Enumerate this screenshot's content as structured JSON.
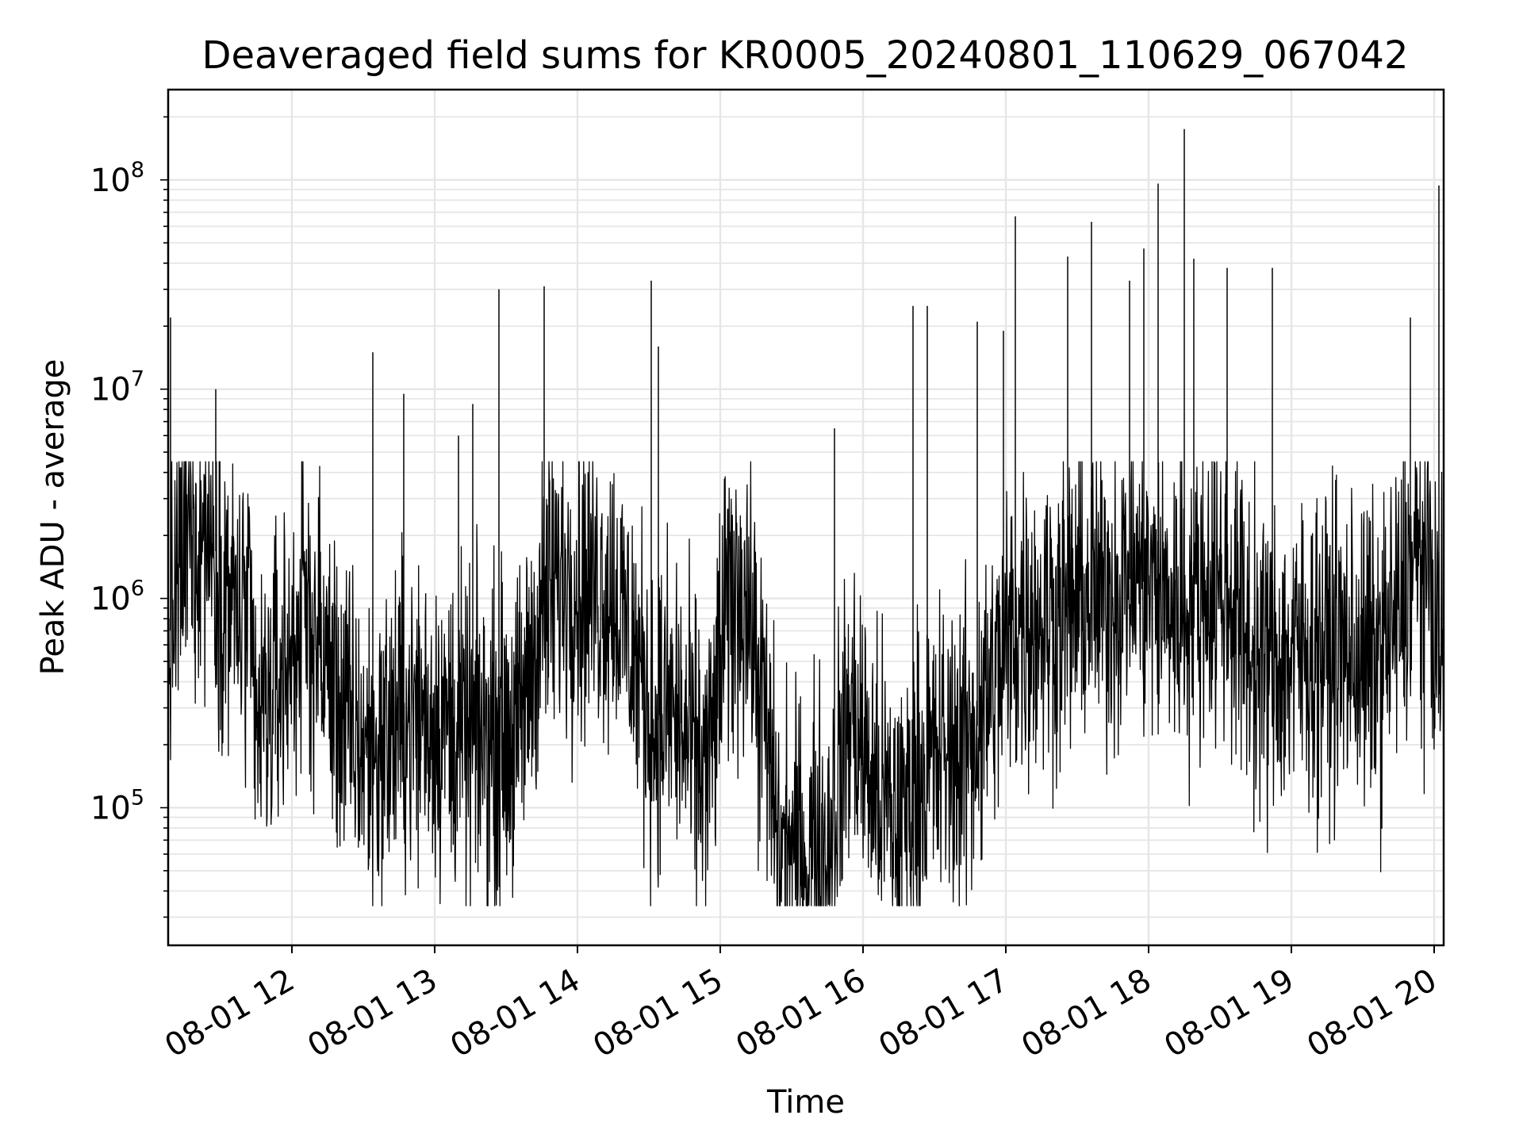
{
  "chart_data": {
    "type": "line",
    "title": "Deaveraged field sums for KR0005_20240801_110629_067042",
    "xlabel": "Time",
    "ylabel": "Peak ADU - average",
    "yscale": "log",
    "ylim": [
      22000,
      270000000
    ],
    "xlim": [
      "2024-08-01 11:08",
      "2024-08-01 20:04"
    ],
    "x_tick_labels": [
      "08-01 12",
      "08-01 13",
      "08-01 14",
      "08-01 15",
      "08-01 16",
      "08-01 17",
      "08-01 18",
      "08-01 19",
      "08-01 20"
    ],
    "y_ticks": [
      {
        "base": "10",
        "exp": "5"
      },
      {
        "base": "10",
        "exp": "6"
      },
      {
        "base": "10",
        "exp": "7"
      },
      {
        "base": "10",
        "exp": "8"
      }
    ],
    "grid": true,
    "line_color": "#000000",
    "series": [
      {
        "x": [
          "2024-08-01 11:08",
          "2024-08-01 11:15",
          "2024-08-01 11:25",
          "2024-08-01 11:35",
          "2024-08-01 11:42",
          "2024-08-01 11:45",
          "2024-08-01 11:52",
          "2024-08-01 11:58",
          "2024-08-01 12:05",
          "2024-08-01 12:12",
          "2024-08-01 12:20",
          "2024-08-01 12:28",
          "2024-08-01 12:35",
          "2024-08-01 12:45",
          "2024-08-01 12:55",
          "2024-08-01 13:05",
          "2024-08-01 13:15",
          "2024-08-01 13:25",
          "2024-08-01 13:35",
          "2024-08-01 13:45",
          "2024-08-01 13:55",
          "2024-08-01 14:05",
          "2024-08-01 14:15",
          "2024-08-01 14:25",
          "2024-08-01 14:32",
          "2024-08-01 14:40",
          "2024-08-01 14:48",
          "2024-08-01 14:55",
          "2024-08-01 15:02",
          "2024-08-01 15:10",
          "2024-08-01 15:18",
          "2024-08-01 15:25",
          "2024-08-01 15:35",
          "2024-08-01 15:45",
          "2024-08-01 15:55",
          "2024-08-01 16:05",
          "2024-08-01 16:15",
          "2024-08-01 16:25",
          "2024-08-01 16:35",
          "2024-08-01 16:45",
          "2024-08-01 16:55",
          "2024-08-01 17:05",
          "2024-08-01 17:15",
          "2024-08-01 17:25",
          "2024-08-01 17:35",
          "2024-08-01 17:45",
          "2024-08-01 17:55",
          "2024-08-01 18:05",
          "2024-08-01 18:15",
          "2024-08-01 18:25",
          "2024-08-01 18:35",
          "2024-08-01 18:45",
          "2024-08-01 18:55",
          "2024-08-01 19:05",
          "2024-08-01 19:15",
          "2024-08-01 19:25",
          "2024-08-01 19:35",
          "2024-08-01 19:45",
          "2024-08-01 19:52",
          "2024-08-01 19:58",
          "2024-08-01 20:04"
        ],
        "y": [
          600000,
          1800000,
          2200000,
          900000,
          700000,
          220000,
          350000,
          500000,
          900000,
          600000,
          300000,
          200000,
          180000,
          260000,
          280000,
          250000,
          200000,
          230000,
          220000,
          900000,
          1300000,
          1200000,
          1100000,
          500000,
          250000,
          300000,
          180000,
          150000,
          800000,
          1200000,
          300000,
          60000,
          60000,
          70000,
          300000,
          120000,
          80000,
          150000,
          180000,
          200000,
          400000,
          800000,
          800000,
          900000,
          1000000,
          1100000,
          1300000,
          1000000,
          900000,
          1200000,
          1000000,
          500000,
          500000,
          550000,
          600000,
          550000,
          500000,
          800000,
          1500000,
          1300000,
          400000
        ]
      }
    ],
    "spikes": [
      {
        "x": "2024-08-01 11:09",
        "y": 22000000
      },
      {
        "x": "2024-08-01 11:28",
        "y": 10000000
      },
      {
        "x": "2024-08-01 12:34",
        "y": 15000000
      },
      {
        "x": "2024-08-01 12:47",
        "y": 9500000
      },
      {
        "x": "2024-08-01 13:10",
        "y": 6000000
      },
      {
        "x": "2024-08-01 13:16",
        "y": 8500000
      },
      {
        "x": "2024-08-01 13:27",
        "y": 30000000
      },
      {
        "x": "2024-08-01 13:46",
        "y": 31000000
      },
      {
        "x": "2024-08-01 14:31",
        "y": 33000000
      },
      {
        "x": "2024-08-01 14:34",
        "y": 16000000
      },
      {
        "x": "2024-08-01 15:48",
        "y": 6500000
      },
      {
        "x": "2024-08-01 16:21",
        "y": 25000000
      },
      {
        "x": "2024-08-01 16:27",
        "y": 25000000
      },
      {
        "x": "2024-08-01 16:48",
        "y": 21000000
      },
      {
        "x": "2024-08-01 16:59",
        "y": 19000000
      },
      {
        "x": "2024-08-01 17:04",
        "y": 67000000
      },
      {
        "x": "2024-08-01 17:26",
        "y": 43000000
      },
      {
        "x": "2024-08-01 17:36",
        "y": 63000000
      },
      {
        "x": "2024-08-01 17:52",
        "y": 33000000
      },
      {
        "x": "2024-08-01 17:58",
        "y": 47000000
      },
      {
        "x": "2024-08-01 18:04",
        "y": 96000000
      },
      {
        "x": "2024-08-01 18:15",
        "y": 175000000
      },
      {
        "x": "2024-08-01 18:19",
        "y": 42000000
      },
      {
        "x": "2024-08-01 18:33",
        "y": 38000000
      },
      {
        "x": "2024-08-01 18:52",
        "y": 38000000
      },
      {
        "x": "2024-08-01 19:50",
        "y": 22000000
      },
      {
        "x": "2024-08-01 20:02",
        "y": 94000000
      }
    ]
  }
}
